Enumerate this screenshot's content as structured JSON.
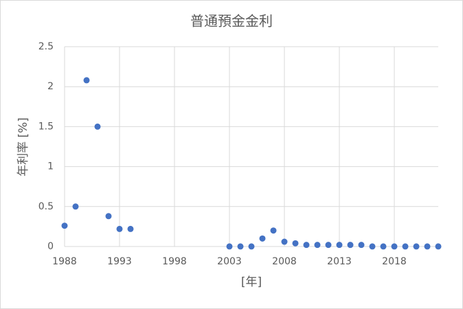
{
  "chart_data": {
    "type": "scatter",
    "title": "普通預金金利",
    "x_label": "[年]",
    "y_label": "年利率 [%]",
    "x": [
      1988,
      1989,
      1990,
      1991,
      1992,
      1993,
      1994,
      2003,
      2004,
      2005,
      2006,
      2007,
      2008,
      2009,
      2010,
      2011,
      2012,
      2013,
      2014,
      2015,
      2016,
      2017,
      2018,
      2019,
      2020,
      2021,
      2022
    ],
    "values": [
      0.26,
      0.5,
      2.08,
      1.5,
      0.38,
      0.22,
      0.22,
      0.001,
      0.001,
      0.001,
      0.1,
      0.2,
      0.06,
      0.04,
      0.02,
      0.02,
      0.02,
      0.02,
      0.02,
      0.02,
      0.001,
      0.001,
      0.001,
      0.001,
      0.001,
      0.001,
      0.001
    ],
    "color": "#4472c4",
    "xlim": [
      1988,
      2022
    ],
    "xticks": [
      1988,
      1993,
      1998,
      2003,
      2008,
      2013,
      2018
    ],
    "ylim": [
      0,
      2.5
    ],
    "yticks": [
      0,
      0.5,
      1,
      1.5,
      2,
      2.5
    ],
    "grid": true
  }
}
